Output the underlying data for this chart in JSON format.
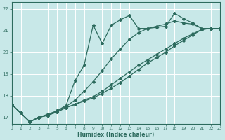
{
  "xlabel": "Humidex (Indice chaleur)",
  "bg_color": "#c8e8e8",
  "line_color": "#2d6b5e",
  "grid_color": "#b0d8d8",
  "xlim": [
    0,
    23
  ],
  "ylim": [
    16.7,
    22.3
  ],
  "yticks": [
    17,
    18,
    19,
    20,
    21,
    22
  ],
  "xticks": [
    0,
    1,
    2,
    3,
    4,
    5,
    6,
    7,
    8,
    9,
    10,
    11,
    12,
    13,
    14,
    15,
    16,
    17,
    18,
    19,
    20,
    21,
    22,
    23
  ],
  "line1_x": [
    0,
    1,
    2,
    3,
    4,
    5,
    6,
    7,
    8,
    9,
    10,
    11,
    12,
    13,
    14,
    15,
    16,
    17,
    18,
    19,
    20,
    21,
    22,
    23
  ],
  "line1_y": [
    17.6,
    17.2,
    16.8,
    17.0,
    17.15,
    17.3,
    17.55,
    18.7,
    19.4,
    21.25,
    20.4,
    21.25,
    21.5,
    21.7,
    21.1,
    21.1,
    21.15,
    21.2,
    21.8,
    21.55,
    21.35,
    21.1,
    21.1,
    21.1
  ],
  "line2_x": [
    0,
    1,
    2,
    3,
    4,
    5,
    6,
    7,
    8,
    9,
    10,
    11,
    12,
    13,
    14,
    15,
    16,
    17,
    18,
    19,
    20,
    21,
    22,
    23
  ],
  "line2_y": [
    17.6,
    17.2,
    16.8,
    17.0,
    17.1,
    17.3,
    17.5,
    17.8,
    18.2,
    18.65,
    19.15,
    19.7,
    20.15,
    20.6,
    20.9,
    21.1,
    21.2,
    21.3,
    21.45,
    21.35,
    21.3,
    21.1,
    21.1,
    21.1
  ],
  "line3_x": [
    0,
    1,
    2,
    3,
    4,
    5,
    6,
    7,
    8,
    9,
    10,
    11,
    12,
    13,
    14,
    15,
    16,
    17,
    18,
    19,
    20,
    21,
    22,
    23
  ],
  "line3_y": [
    17.6,
    17.2,
    16.8,
    17.0,
    17.1,
    17.25,
    17.45,
    17.6,
    17.8,
    17.95,
    18.2,
    18.5,
    18.8,
    19.1,
    19.4,
    19.65,
    19.9,
    20.15,
    20.4,
    20.65,
    20.85,
    21.05,
    21.1,
    21.1
  ],
  "line4_x": [
    0,
    2,
    3,
    4,
    5,
    6,
    7,
    8,
    9,
    10,
    11,
    12,
    13,
    14,
    15,
    16,
    17,
    18,
    19,
    20,
    21,
    22,
    23
  ],
  "line4_y": [
    17.6,
    16.8,
    17.0,
    17.1,
    17.25,
    17.45,
    17.6,
    17.75,
    17.9,
    18.1,
    18.35,
    18.6,
    18.9,
    19.2,
    19.5,
    19.75,
    20.0,
    20.3,
    20.55,
    20.8,
    21.05,
    21.1,
    21.1
  ]
}
